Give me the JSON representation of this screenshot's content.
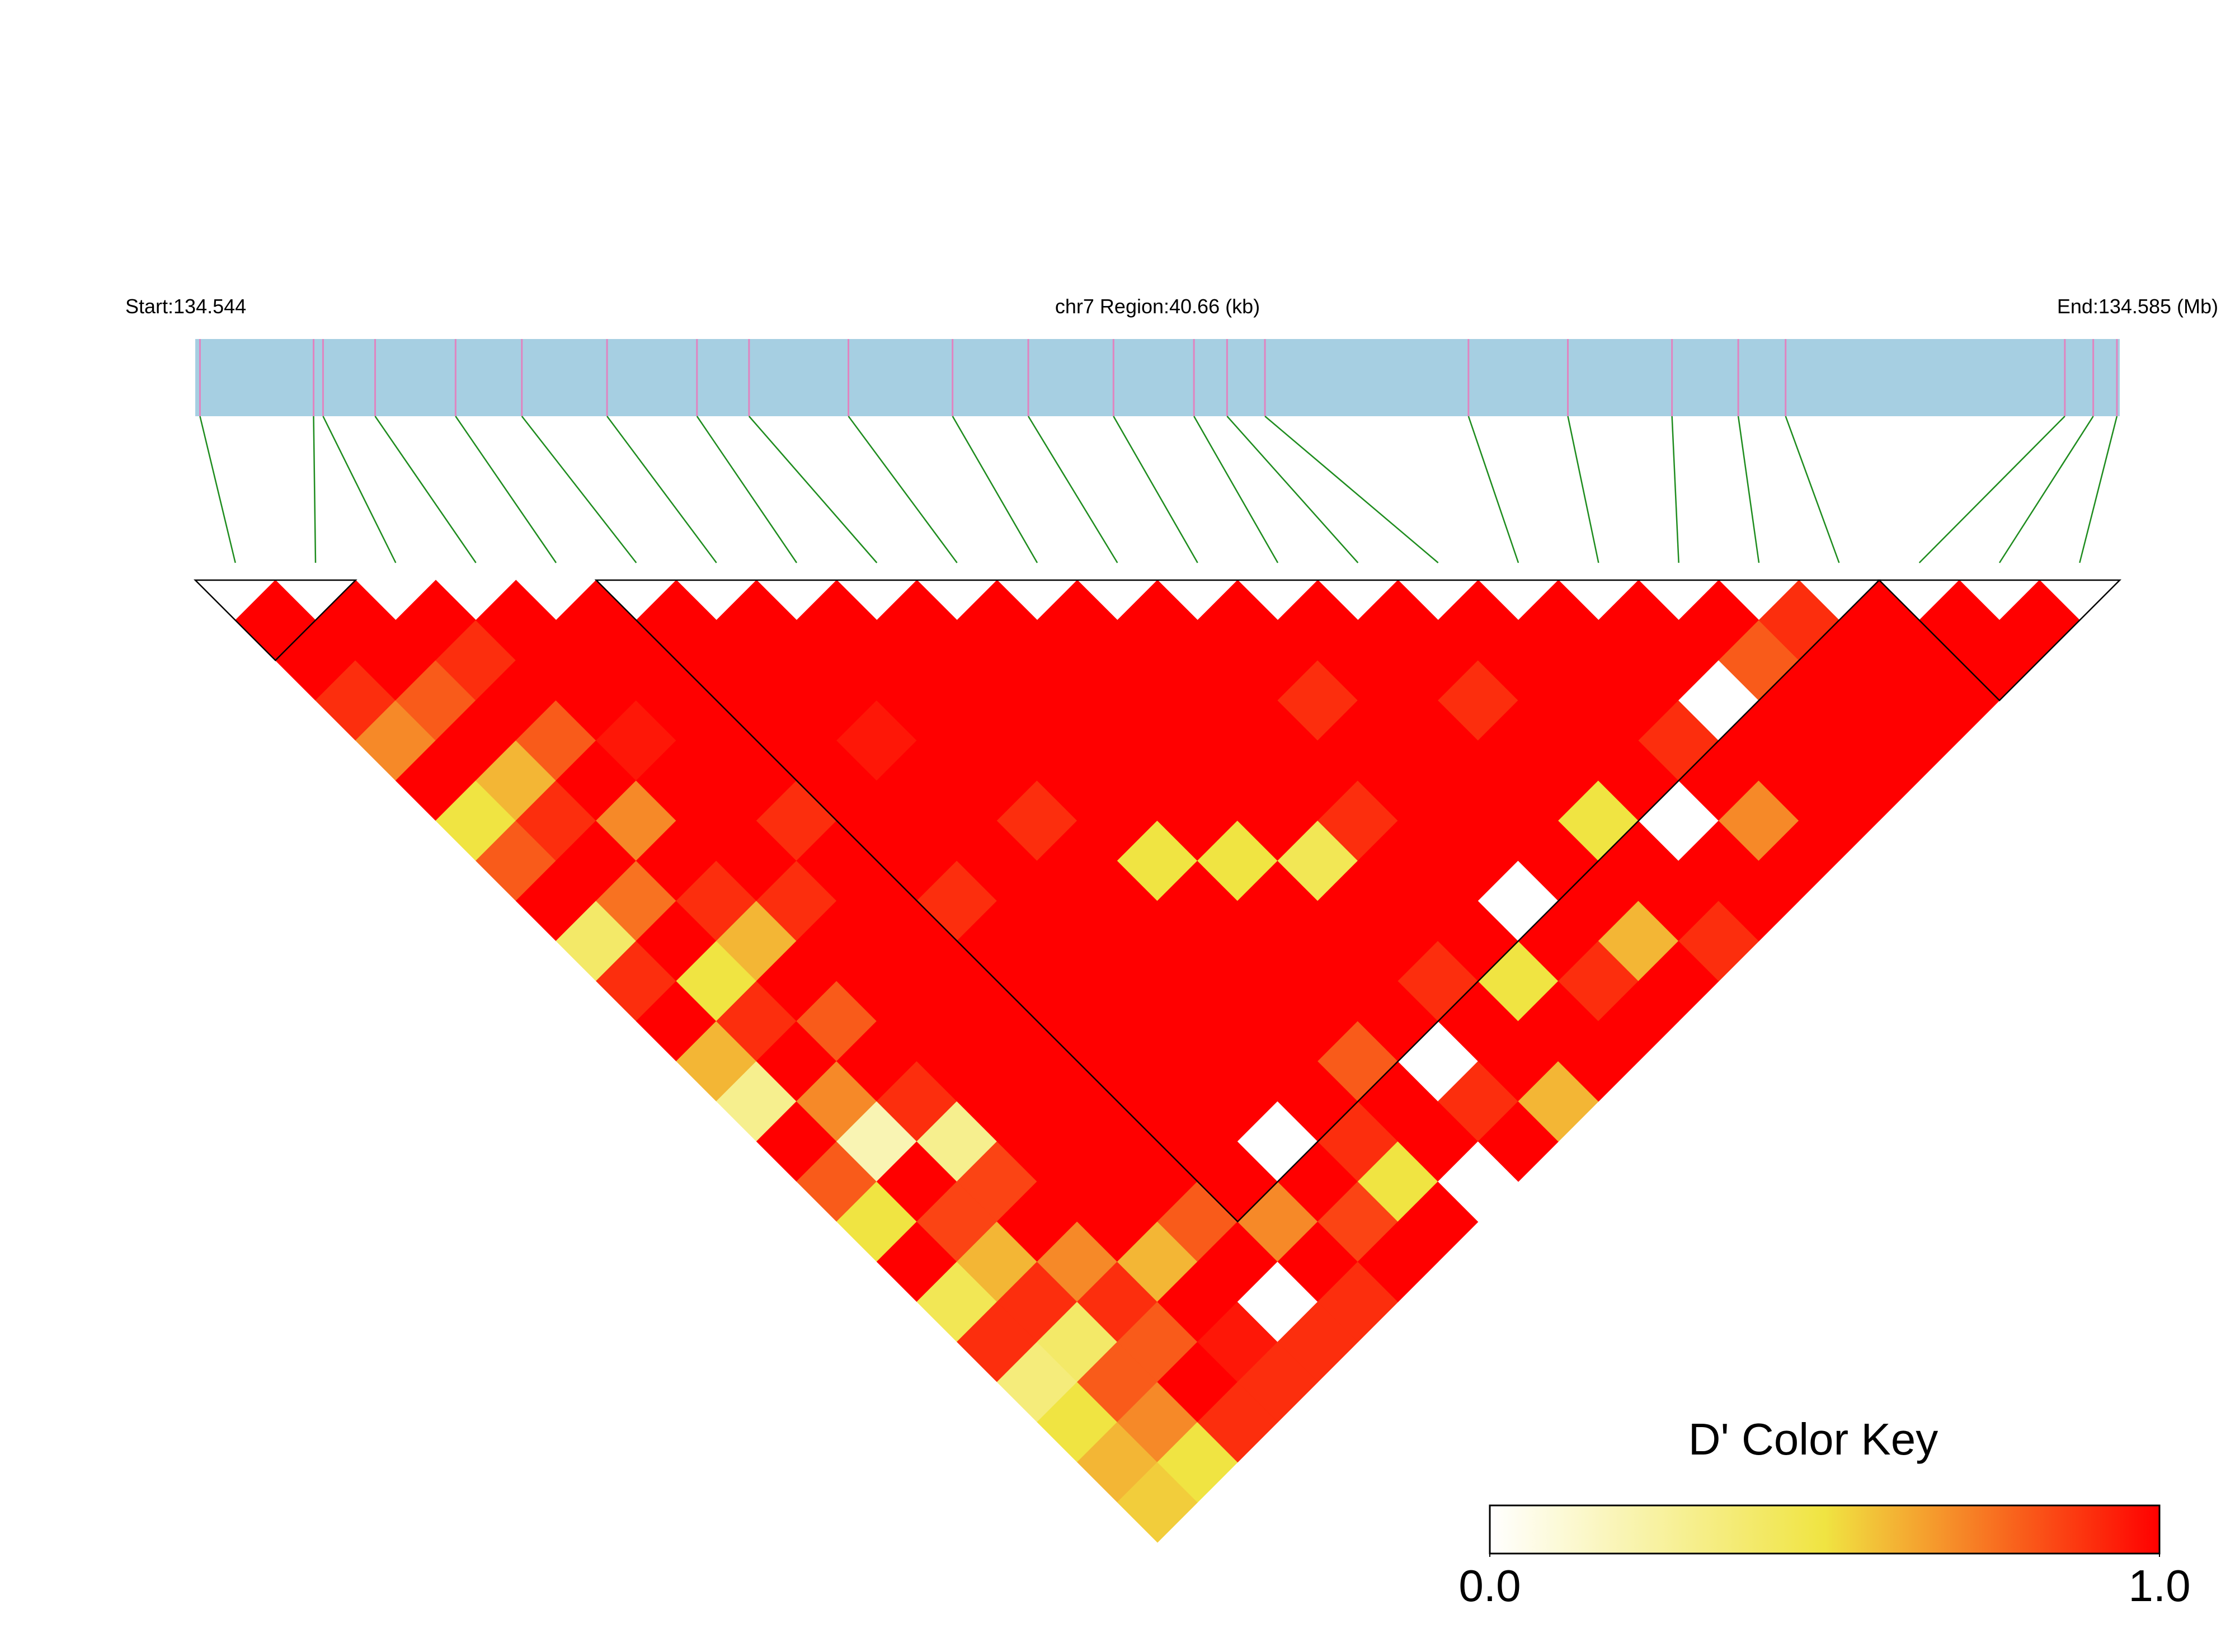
{
  "chart_data": {
    "type": "ld_heatmap",
    "start_label": "Start:134.544",
    "region_label": "chr7 Region:40.66 (kb)",
    "end_label": "End:134.585 (Mb)",
    "key_title": "D' Color Key",
    "xlim": [
      134.5443,
      134.58496
    ],
    "positions": [
      134.5444,
      134.5468,
      134.547,
      134.5481,
      134.5498,
      134.5512,
      134.553,
      134.5549,
      134.556,
      134.5581,
      134.5603,
      134.5619,
      134.5637,
      134.5654,
      134.5661,
      134.5669,
      134.5712,
      134.5733,
      134.5755,
      134.5769,
      134.5779,
      134.5838,
      134.5844,
      134.5849
    ],
    "dprime": [
      [
        1,
        1,
        0.9,
        0.7,
        1,
        0.5,
        0.8,
        1,
        0.4,
        0.9,
        1,
        0.6,
        0.3,
        1,
        0.8,
        0.5,
        1,
        0.45,
        0.9,
        0.35,
        0.5,
        0.6,
        0.55
      ],
      [
        1,
        1,
        0.8,
        1,
        0.6,
        0.9,
        1,
        0.75,
        1,
        0.5,
        0.9,
        1,
        0.7,
        0.2,
        1,
        0.85,
        0.6,
        0.9,
        0.4,
        0.8,
        0.7,
        0.5
      ],
      [
        1,
        0.9,
        1,
        0.8,
        1,
        0.7,
        1,
        0.9,
        0.6,
        1,
        0.8,
        1,
        0.9,
        0.3,
        0.85,
        1,
        0.7,
        0.9,
        0.8,
        1,
        0.9
      ],
      [
        1,
        1,
        1,
        0.95,
        1,
        1,
        1,
        0.9,
        1,
        1,
        1,
        1,
        1,
        1,
        1,
        1,
        0.6,
        1,
        0.95,
        0.9
      ],
      [
        1,
        1,
        1,
        1,
        1,
        0.9,
        1,
        1,
        1,
        1,
        1,
        1,
        1,
        1,
        1,
        0.8,
        1,
        0,
        0.9
      ],
      [
        1,
        1,
        1,
        1,
        1,
        1,
        1,
        0.9,
        1,
        1,
        1,
        1,
        1,
        1,
        1,
        0.7,
        1,
        0.9
      ],
      [
        1,
        1,
        1,
        0.95,
        1,
        1,
        1,
        1,
        1,
        1,
        1,
        1,
        1,
        0,
        1,
        0.85,
        1
      ],
      [
        1,
        1,
        1,
        1,
        1,
        0.9,
        1,
        1,
        1,
        1,
        1,
        1,
        1,
        0.9,
        0.5,
        1
      ],
      [
        1,
        1,
        1,
        1,
        1,
        1,
        0.5,
        1,
        1,
        1,
        1,
        0.8,
        1,
        1,
        0
      ],
      [
        1,
        1,
        1,
        1,
        1,
        1,
        0.5,
        1,
        1,
        1,
        1,
        0,
        0.9,
        1
      ],
      [
        1,
        1,
        1,
        1,
        1,
        1,
        0.45,
        1,
        1,
        0.9,
        1,
        1,
        0.6
      ],
      [
        1,
        1,
        1,
        1,
        1,
        0.9,
        1,
        1,
        1,
        0.5,
        1,
        1
      ],
      [
        1,
        1,
        0.9,
        1,
        1,
        1,
        1,
        0,
        1,
        0.9,
        1
      ],
      [
        1,
        1,
        1,
        1,
        1,
        1,
        1,
        1,
        0.6,
        1
      ],
      [
        1,
        1,
        0.9,
        1,
        1,
        0.5,
        1,
        1,
        0.9
      ],
      [
        1,
        1,
        1,
        1,
        1,
        0,
        1,
        1
      ],
      [
        1,
        1,
        1,
        0.9,
        1,
        0.7,
        1
      ],
      [
        1,
        1,
        0,
        1,
        1,
        1
      ],
      [
        1,
        0.8,
        1,
        1,
        1
      ],
      [
        0.9,
        1,
        1,
        1
      ],
      [
        1,
        1,
        1
      ],
      [
        1,
        1
      ],
      [
        1
      ]
    ],
    "blocks": [
      [
        0,
        1
      ],
      [
        5,
        20
      ],
      [
        21,
        23
      ]
    ],
    "bar_color": "#a6cfe2",
    "snp_color": "#e084c0",
    "link_color": "#1e8c1e",
    "colors": [
      "#ffffff",
      "#f0e442",
      "#ff0000"
    ],
    "key_ticks": [
      {
        "value": 0,
        "label": "0.0"
      },
      {
        "value": 1,
        "label": "1.0"
      }
    ]
  }
}
